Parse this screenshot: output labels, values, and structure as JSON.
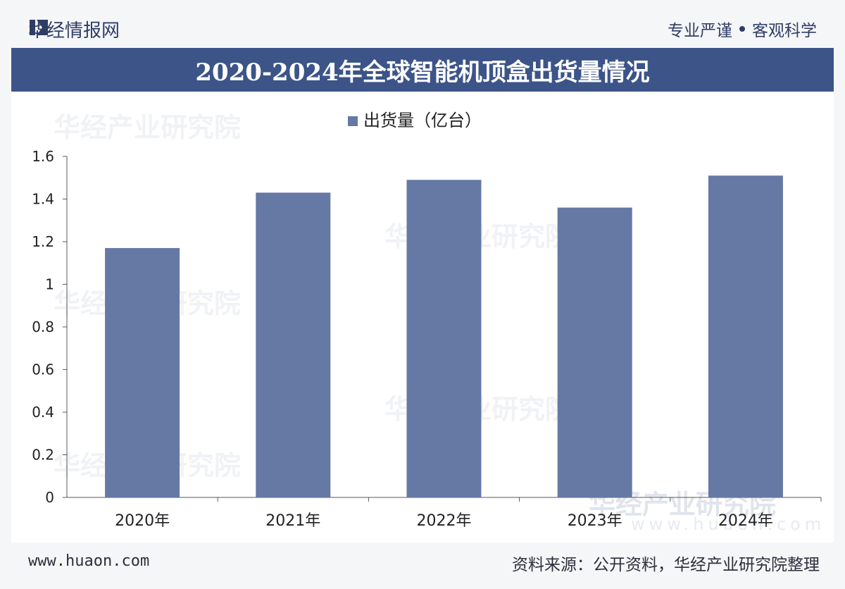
{
  "header": {
    "brand": "华经情报网",
    "slogan_left": "专业严谨",
    "slogan_right": "客观科学"
  },
  "title": "2020-2024年全球智能机顶盒出货量情况",
  "chart_data": {
    "type": "bar",
    "title": "2020-2024年全球智能机顶盒出货量情况",
    "legend": [
      "出货量（亿台）"
    ],
    "legend_position": "top-center",
    "categories": [
      "2020年",
      "2021年",
      "2022年",
      "2023年",
      "2024年"
    ],
    "series": [
      {
        "name": "出货量（亿台）",
        "values": [
          1.17,
          1.43,
          1.49,
          1.36,
          1.51
        ]
      }
    ],
    "ylim": [
      0,
      1.6
    ],
    "yticks": [
      "0",
      "0.2",
      "0.4",
      "0.6",
      "0.8",
      "1",
      "1.2",
      "1.4",
      "1.6"
    ],
    "xlabel": "",
    "ylabel": "",
    "grid": false,
    "bar_color": "#6679a4"
  },
  "watermark": {
    "text": "华经产业研究院",
    "url": "www.huaon.com"
  },
  "footer": {
    "site": "www.huaon.com",
    "source": "资料来源：公开资料，华经产业研究院整理"
  }
}
